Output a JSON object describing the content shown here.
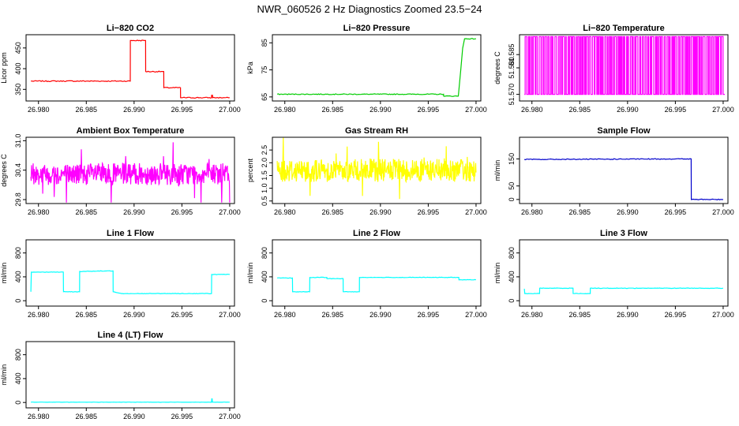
{
  "figure_title": "NWR_060526  2 Hz Diagnostics Zoomed 23.5−24",
  "chart_data": [
    {
      "type": "line",
      "title": "Li−820 CO2",
      "ylabel": "Licor ppm",
      "xlabel": "",
      "color": "#ff0000",
      "xlim": [
        26.9787,
        27.0005
      ],
      "ylim": [
        322,
        482
      ],
      "xticks": [
        "26.980",
        "26.985",
        "26.990",
        "26.995",
        "27.000"
      ],
      "xtick_values": [
        26.98,
        26.985,
        26.99,
        26.995,
        27.0
      ],
      "yticks": [
        "350",
        "400",
        "450"
      ],
      "ytick_values": [
        350,
        400,
        450
      ],
      "noise": 1.2,
      "x": [
        26.9792,
        26.9896,
        26.98961,
        26.9912,
        26.99121,
        26.9931,
        26.99311,
        26.99485,
        26.99486,
        26.9981,
        26.99811,
        26.9982,
        26.99821,
        27.0
      ],
      "y": [
        370,
        370,
        468,
        468,
        393,
        393,
        354,
        354,
        330,
        330,
        336,
        336,
        330,
        330
      ]
    },
    {
      "type": "line",
      "title": "Li−820 Pressure",
      "ylabel": "kPa",
      "xlabel": "",
      "color": "#00cc00",
      "xlim": [
        26.9787,
        27.0005
      ],
      "ylim": [
        63.5,
        88
      ],
      "xticks": [
        "26.980",
        "26.985",
        "26.990",
        "26.995",
        "27.000"
      ],
      "xtick_values": [
        26.98,
        26.985,
        26.99,
        26.995,
        27.0
      ],
      "yticks": [
        "65",
        "75",
        "85"
      ],
      "ytick_values": [
        65,
        75,
        85
      ],
      "noise": 0.15,
      "x": [
        26.9792,
        26.9966,
        26.99661,
        26.99815,
        26.9984,
        26.9986,
        26.9988,
        26.99885,
        27.0
      ],
      "y": [
        66.0,
        66.0,
        65.3,
        65.3,
        75,
        83,
        86.5,
        86.5,
        86.5
      ]
    },
    {
      "type": "line",
      "title": "Li−820 Temperature",
      "ylabel": "degrees C",
      "xlabel": "",
      "color": "#ff00ff",
      "xlim": [
        26.9787,
        27.0005
      ],
      "ylim": [
        51.567,
        51.592
      ],
      "xticks": [
        "26.980",
        "26.985",
        "26.990",
        "26.995",
        "27.000"
      ],
      "xtick_values": [
        26.98,
        26.985,
        26.99,
        26.995,
        27.0
      ],
      "yticks": [
        "51.570",
        "51.580",
        "51.585"
      ],
      "ytick_values": [
        51.5695,
        51.5795,
        51.5845
      ],
      "levels": [
        51.5695,
        51.5913
      ],
      "switches": 180
    },
    {
      "type": "line",
      "title": "Ambient Box Temperature",
      "ylabel": "degrees C",
      "xlabel": "",
      "color": "#ff00ff",
      "xlim": [
        26.9787,
        27.0005
      ],
      "ylim": [
        29.72,
        31.07
      ],
      "xticks": [
        "26.980",
        "26.985",
        "26.990",
        "26.995",
        "27.000"
      ],
      "xtick_values": [
        26.98,
        26.985,
        26.99,
        26.995,
        27.0
      ],
      "yticks": [
        "29.8",
        "30.4",
        "31.0"
      ],
      "ytick_values": [
        29.8,
        30.4,
        31.0
      ],
      "mean": 30.32,
      "spread": 0.22,
      "spikes": 0.75
    },
    {
      "type": "line",
      "title": "Gas Stream RH",
      "ylabel": "percent",
      "xlabel": "",
      "color": "#ffff00",
      "xlim": [
        26.9787,
        27.0005
      ],
      "ylim": [
        0.4,
        3.0
      ],
      "xticks": [
        "26.980",
        "26.985",
        "26.990",
        "26.995",
        "27.000"
      ],
      "xtick_values": [
        26.98,
        26.985,
        26.99,
        26.995,
        27.0
      ],
      "yticks": [
        "0.5",
        "1.0",
        "1.5",
        "2.0",
        "2.5"
      ],
      "ytick_values": [
        0.5,
        1.0,
        1.5,
        2.0,
        2.5
      ],
      "mean": 1.7,
      "spread": 0.45,
      "spikes": 1.3
    },
    {
      "type": "line",
      "title": "Sample Flow",
      "ylabel": "ml/min",
      "xlabel": "",
      "color": "#0000cc",
      "xlim": [
        26.9787,
        27.0005
      ],
      "ylim": [
        -15,
        230
      ],
      "xticks": [
        "26.980",
        "26.985",
        "26.990",
        "26.995",
        "27.000"
      ],
      "xtick_values": [
        26.98,
        26.985,
        26.99,
        26.995,
        27.0
      ],
      "yticks": [
        "0",
        "50",
        "150"
      ],
      "ytick_values": [
        0,
        50,
        150
      ],
      "noise": 1.5,
      "x": [
        26.9792,
        26.99665,
        26.99667,
        27.0
      ],
      "y": [
        148,
        150,
        0,
        0
      ]
    },
    {
      "type": "line",
      "title": "Line 1 Flow",
      "ylabel": "ml/min",
      "xlabel": "",
      "color": "#00ffff",
      "xlim": [
        26.9787,
        27.0005
      ],
      "ylim": [
        -90,
        1020
      ],
      "xticks": [
        "26.980",
        "26.985",
        "26.990",
        "26.995",
        "27.000"
      ],
      "xtick_values": [
        26.98,
        26.985,
        26.99,
        26.995,
        27.0
      ],
      "yticks": [
        "0",
        "400",
        "800"
      ],
      "ytick_values": [
        0,
        400,
        800
      ],
      "noise": 4,
      "x": [
        26.9792,
        26.97925,
        26.9826,
        26.98261,
        26.9843,
        26.98431,
        26.9878,
        26.98781,
        26.9888,
        26.9981,
        26.99811,
        27.0
      ],
      "y": [
        150,
        480,
        480,
        150,
        150,
        490,
        500,
        150,
        120,
        120,
        440,
        440
      ]
    },
    {
      "type": "line",
      "title": "Line 2 Flow",
      "ylabel": "ml/min",
      "xlabel": "",
      "color": "#00ffff",
      "xlim": [
        26.9787,
        27.0005
      ],
      "ylim": [
        -90,
        1020
      ],
      "xticks": [
        "26.980",
        "26.985",
        "26.990",
        "26.995",
        "27.000"
      ],
      "xtick_values": [
        26.98,
        26.985,
        26.99,
        26.995,
        27.0
      ],
      "yticks": [
        "0",
        "400",
        "800"
      ],
      "ytick_values": [
        0,
        400,
        800
      ],
      "noise": 4,
      "x": [
        26.9792,
        26.9808,
        26.98081,
        26.9826,
        26.98261,
        26.9844,
        26.98441,
        26.9861,
        26.98611,
        26.9878,
        26.98781,
        26.9982,
        26.99821,
        27.0
      ],
      "y": [
        380,
        380,
        150,
        150,
        390,
        390,
        370,
        370,
        150,
        150,
        390,
        390,
        350,
        350
      ]
    },
    {
      "type": "line",
      "title": "Line 3 Flow",
      "ylabel": "ml/min",
      "xlabel": "",
      "color": "#00ffff",
      "xlim": [
        26.9787,
        27.0005
      ],
      "ylim": [
        -90,
        1020
      ],
      "xticks": [
        "26.980",
        "26.985",
        "26.990",
        "26.995",
        "27.000"
      ],
      "xtick_values": [
        26.98,
        26.985,
        26.99,
        26.995,
        27.0
      ],
      "yticks": [
        "0",
        "400",
        "800"
      ],
      "ytick_values": [
        0,
        400,
        800
      ],
      "noise": 4,
      "x": [
        26.9792,
        26.97925,
        26.9794,
        26.9808,
        26.98081,
        26.9843,
        26.98431,
        26.9861,
        26.98611,
        27.0
      ],
      "y": [
        200,
        120,
        120,
        120,
        210,
        210,
        120,
        120,
        210,
        210
      ]
    },
    {
      "type": "line",
      "title": "Line 4 (LT) Flow",
      "ylabel": "ml/min",
      "xlabel": "",
      "color": "#00ffff",
      "xlim": [
        26.9787,
        27.0005
      ],
      "ylim": [
        -90,
        1020
      ],
      "xticks": [
        "26.980",
        "26.985",
        "26.990",
        "26.995",
        "27.000"
      ],
      "xtick_values": [
        26.98,
        26.985,
        26.99,
        26.995,
        27.0
      ],
      "yticks": [
        "0",
        "400",
        "800"
      ],
      "ytick_values": [
        0,
        400,
        800
      ],
      "noise": 2,
      "x": [
        26.9792,
        26.9981,
        26.99812,
        26.99816,
        26.9982,
        27.0
      ],
      "y": [
        5,
        5,
        60,
        60,
        5,
        5
      ]
    }
  ]
}
